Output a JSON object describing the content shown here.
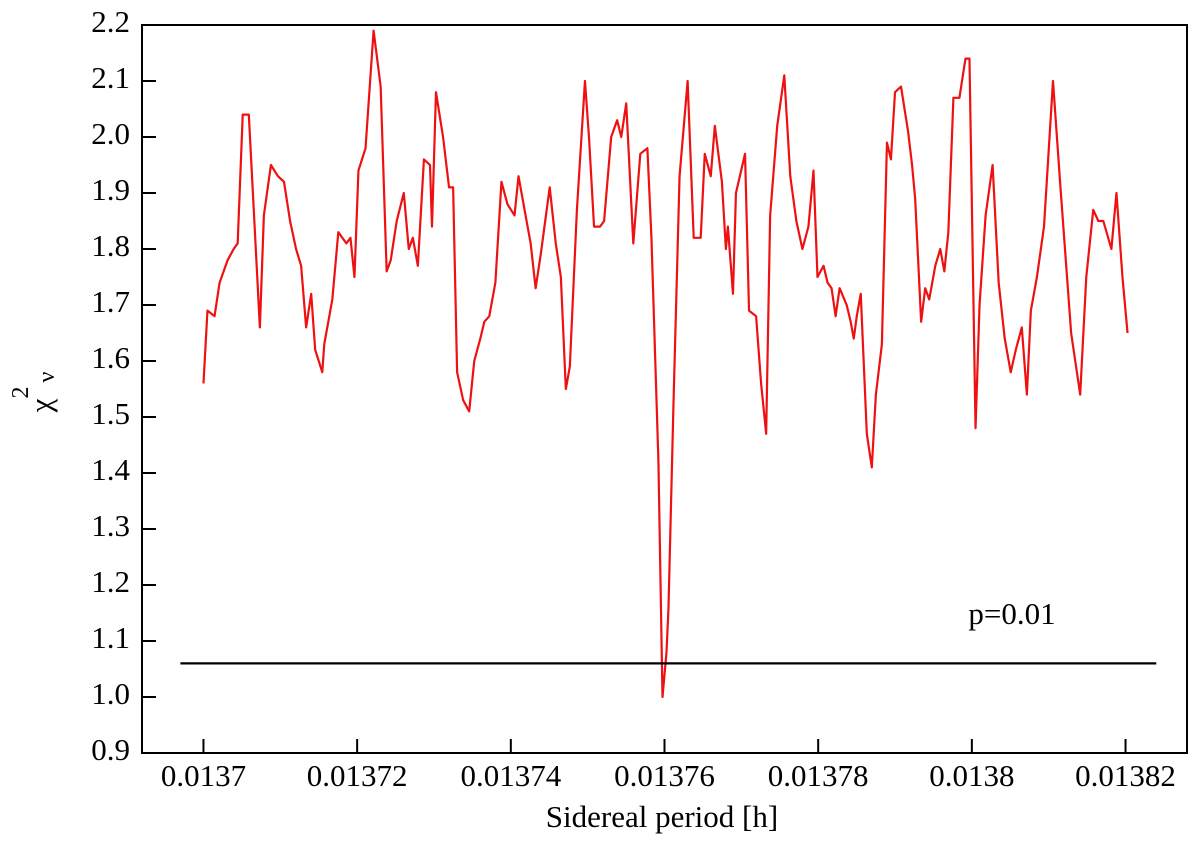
{
  "chart_data": {
    "type": "line",
    "xlabel": "Sidereal period [h]",
    "ylabel": "χ",
    "ylabel_sup": "2",
    "ylabel_sub": "ν",
    "xlim": [
      0.013692,
      0.013828
    ],
    "ylim": [
      0.9,
      2.2
    ],
    "xticks": [
      0.0137,
      0.01372,
      0.01374,
      0.01376,
      0.01378,
      0.0138,
      0.01382
    ],
    "yticks": [
      0.9,
      {
        "value": 1,
        "label": "1.0"
      },
      1.1,
      1.2,
      1.3,
      1.4,
      1.5,
      1.6,
      1.7,
      1.8,
      1.9,
      {
        "value": 2,
        "label": "2.0"
      },
      2.1,
      2.2
    ],
    "series": [
      {
        "color": "#ee1111",
        "x": [
          0.0137,
          0.01370052,
          0.01370144,
          0.0137021,
          0.01370314,
          0.01370393,
          0.01370445,
          0.01370511,
          0.0137059,
          0.01370734,
          0.01370786,
          0.01370878,
          0.01370969,
          0.01371048,
          0.01371127,
          0.01371205,
          0.01371271,
          0.01371336,
          0.01371402,
          0.01371454,
          0.01371546,
          0.01371572,
          0.01371677,
          0.01371755,
          0.0137186,
          0.01371913,
          0.01371965,
          0.01372017,
          0.01372109,
          0.01372214,
          0.01372306,
          0.01372384,
          0.01372437,
          0.01372515,
          0.01372607,
          0.01372672,
          0.01372725,
          0.0137279,
          0.01372869,
          0.01372948,
          0.01372974,
          0.01373026,
          0.01373118,
          0.01373196,
          0.01373249,
          0.01373301,
          0.0137338,
          0.01373458,
          0.01373524,
          0.01373603,
          0.01373655,
          0.0137372,
          0.01373799,
          0.01373878,
          0.01373956,
          0.01374048,
          0.013741,
          0.01374192,
          0.01374258,
          0.01374323,
          0.01374389,
          0.01374506,
          0.01374585,
          0.01374651,
          0.01374716,
          0.01374768,
          0.0137486,
          0.01374965,
          0.01375017,
          0.01375083,
          0.01375161,
          0.01375214,
          0.01375306,
          0.01375384,
          0.01375437,
          0.01375502,
          0.01375594,
          0.01375685,
          0.01375777,
          0.0137583,
          0.01375921,
          0.01375974,
          0.01376026,
          0.01376052,
          0.01376118,
          0.01376196,
          0.01376301,
          0.0137638,
          0.01376471,
          0.01376524,
          0.01376602,
          0.01376655,
          0.01376747,
          0.01376799,
          0.01376825,
          0.01376891,
          0.0137693,
          0.01377048,
          0.013771,
          0.01377192,
          0.01377257,
          0.01377323,
          0.01377375,
          0.01377467,
          0.01377559,
          0.01377637,
          0.01377716,
          0.01377795,
          0.01377873,
          0.01377939,
          0.01377991,
          0.0137807,
          0.01378122,
          0.01378174,
          0.01378227,
          0.01378279,
          0.01378371,
          0.01378423,
          0.01378463,
          0.01378502,
          0.01378554,
          0.01378633,
          0.01378698,
          0.01378751,
          0.01378829,
          0.01378895,
          0.01378947,
          0.01379,
          0.01379078,
          0.0137917,
          0.01379222,
          0.01379262,
          0.0137934,
          0.01379393,
          0.01379445,
          0.01379524,
          0.01379589,
          0.01379642,
          0.01379694,
          0.0137976,
          0.01379838,
          0.01379917,
          0.01379969,
          0.01380048,
          0.013801,
          0.01380179,
          0.0138027,
          0.01380349,
          0.01380428,
          0.01380506,
          0.01380572,
          0.0138065,
          0.01380716,
          0.01380768,
          0.01380847,
          0.01380939,
          0.01381056,
          0.01381148,
          0.01381292,
          0.0138141,
          0.01381489,
          0.0138158,
          0.01381646,
          0.01381711,
          0.01381816,
          0.01381882,
          0.0138196,
          0.01382026
        ],
        "values": [
          1.56,
          1.69,
          1.68,
          1.74,
          1.78,
          1.8,
          1.81,
          2.04,
          2.04,
          1.66,
          1.86,
          1.95,
          1.93,
          1.92,
          1.85,
          1.8,
          1.77,
          1.66,
          1.72,
          1.62,
          1.58,
          1.63,
          1.71,
          1.83,
          1.81,
          1.82,
          1.75,
          1.94,
          1.98,
          2.19,
          2.09,
          1.76,
          1.78,
          1.85,
          1.9,
          1.8,
          1.82,
          1.77,
          1.96,
          1.95,
          1.84,
          2.08,
          2.0,
          1.91,
          1.91,
          1.58,
          1.53,
          1.51,
          1.6,
          1.64,
          1.67,
          1.68,
          1.74,
          1.92,
          1.88,
          1.86,
          1.93,
          1.86,
          1.81,
          1.73,
          1.79,
          1.91,
          1.81,
          1.75,
          1.55,
          1.59,
          1.87,
          2.1,
          2.0,
          1.84,
          1.84,
          1.85,
          2.0,
          2.03,
          2.0,
          2.06,
          1.81,
          1.97,
          1.98,
          1.82,
          1.42,
          1.0,
          1.08,
          1.16,
          1.53,
          1.93,
          2.1,
          1.82,
          1.82,
          1.97,
          1.93,
          2.02,
          1.92,
          1.8,
          1.84,
          1.72,
          1.9,
          1.97,
          1.69,
          1.68,
          1.56,
          1.47,
          1.86,
          2.02,
          2.11,
          1.93,
          1.85,
          1.8,
          1.84,
          1.94,
          1.75,
          1.77,
          1.74,
          1.73,
          1.68,
          1.73,
          1.7,
          1.67,
          1.64,
          1.68,
          1.72,
          1.47,
          1.41,
          1.54,
          1.63,
          1.99,
          1.96,
          2.08,
          2.09,
          2.01,
          1.95,
          1.89,
          1.67,
          1.73,
          1.71,
          1.77,
          1.8,
          1.76,
          1.83,
          2.07,
          2.07,
          2.14,
          2.14,
          1.48,
          1.7,
          1.86,
          1.95,
          1.74,
          1.64,
          1.58,
          1.62,
          1.66,
          1.54,
          1.69,
          1.75,
          1.84,
          2.1,
          1.92,
          1.65,
          1.54,
          1.75,
          1.87,
          1.85,
          1.85,
          1.8,
          1.9,
          1.75,
          1.65
        ]
      }
    ],
    "hline": {
      "y": 1.06,
      "x": [
        0.013697,
        0.013824
      ],
      "color": "#000000",
      "label": "p=0.01"
    }
  }
}
